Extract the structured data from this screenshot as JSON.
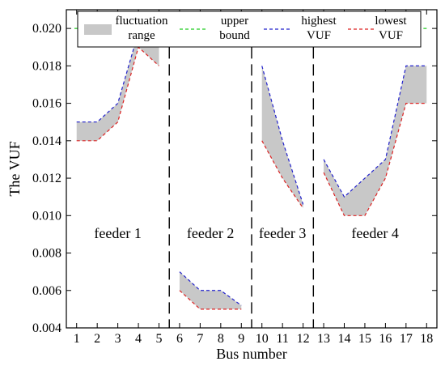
{
  "chart_data": {
    "type": "line",
    "xlabel": "Bus number",
    "ylabel": "The VUF",
    "ylim": [
      0.004,
      0.021
    ],
    "xlim": [
      0.5,
      18.5
    ],
    "yticks": [
      "0.004",
      "0.006",
      "0.008",
      "0.010",
      "0.012",
      "0.014",
      "0.016",
      "0.018",
      "0.020"
    ],
    "ytick_values": [
      0.004,
      0.006,
      0.008,
      0.01,
      0.012,
      0.014,
      0.016,
      0.018,
      0.02
    ],
    "xticks": [
      "1",
      "2",
      "3",
      "4",
      "5",
      "6",
      "7",
      "8",
      "9",
      "10",
      "11",
      "12",
      "13",
      "14",
      "15",
      "16",
      "17",
      "18"
    ],
    "grid": false,
    "legend_position": "top",
    "legend": [
      {
        "key": "range",
        "lines": [
          "fluctuation",
          "range"
        ],
        "color": "#c8c8c8"
      },
      {
        "key": "upper",
        "lines": [
          "upper",
          "bound"
        ],
        "color": "#22cc22"
      },
      {
        "key": "highest",
        "lines": [
          "highest",
          "VUF"
        ],
        "color": "#2222cc"
      },
      {
        "key": "lowest",
        "lines": [
          "lowest",
          "VUF"
        ],
        "color": "#dd2222"
      }
    ],
    "upper_bound": 0.02,
    "feeders": [
      {
        "label": "feeder 1",
        "x": [
          1,
          2,
          3,
          4,
          5
        ],
        "highest": [
          0.015,
          0.015,
          0.016,
          0.0198,
          0.0198
        ],
        "lowest": [
          0.014,
          0.014,
          0.015,
          0.019,
          0.018
        ]
      },
      {
        "label": "feeder 2",
        "x": [
          6,
          7,
          8,
          9
        ],
        "highest": [
          0.007,
          0.006,
          0.006,
          0.0052
        ],
        "lowest": [
          0.006,
          0.005,
          0.005,
          0.005
        ]
      },
      {
        "label": "feeder 3",
        "x": [
          10,
          11,
          12
        ],
        "highest": [
          0.018,
          0.014,
          0.0106
        ],
        "lowest": [
          0.014,
          0.012,
          0.0104
        ]
      },
      {
        "label": "feeder 4",
        "x": [
          13,
          14,
          15,
          16,
          17,
          18
        ],
        "highest": [
          0.013,
          0.011,
          0.012,
          0.013,
          0.018,
          0.018
        ],
        "lowest": [
          0.0123,
          0.01,
          0.01,
          0.012,
          0.016,
          0.016
        ]
      }
    ],
    "separators": [
      5.5,
      9.5,
      12.5
    ]
  }
}
